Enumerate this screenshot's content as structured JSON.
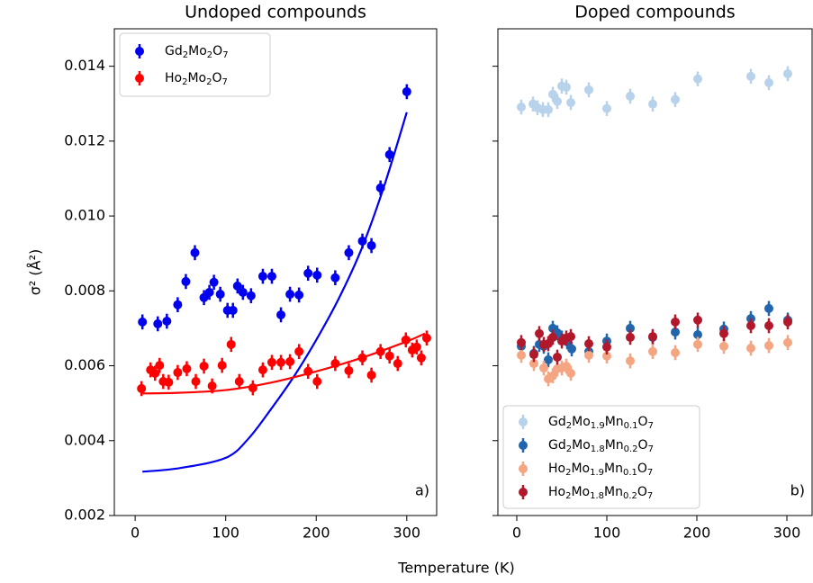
{
  "xlabel": "Temperature (K)",
  "chart_data": [
    {
      "type": "errorbar",
      "title": "Undoped compounds",
      "ylabel": "σ² (Å²)",
      "annotation": "a)",
      "xlim": [
        -23,
        333
      ],
      "ylim": [
        0.002,
        0.015
      ],
      "xticks": [
        0,
        100,
        200,
        300
      ],
      "yticks": [
        0.002,
        0.004,
        0.006,
        0.008,
        {
          "value": 0.01,
          "label": "0.010"
        },
        0.012,
        0.014
      ],
      "show_ytick_labels": true,
      "legend": "upper left",
      "series": [
        {
          "name": "Gd2Mo2O7",
          "color": "#0000ee",
          "error": 0.0002,
          "x": [
            8,
            25,
            35,
            47,
            56,
            66,
            76,
            82,
            87,
            94,
            102,
            108,
            113,
            119,
            128,
            141,
            151,
            161,
            171,
            181,
            191,
            201,
            221,
            236,
            251,
            261,
            271,
            281,
            300
          ],
          "values": [
            0.00717,
            0.00712,
            0.00719,
            0.00763,
            0.00825,
            0.00902,
            0.00782,
            0.00796,
            0.00823,
            0.00791,
            0.00748,
            0.00748,
            0.00813,
            0.00796,
            0.00787,
            0.00839,
            0.00839,
            0.00736,
            0.00791,
            0.00789,
            0.00847,
            0.00842,
            0.00835,
            0.00902,
            0.00933,
            0.00921,
            0.01075,
            0.01164,
            0.01332
          ]
        },
        {
          "name": "Ho2Mo2O7",
          "color": "#ff0000",
          "error": 0.0002,
          "x": [
            7,
            17,
            22,
            27,
            31,
            37,
            47,
            57,
            67,
            76,
            85,
            96,
            106,
            115,
            130,
            141,
            151,
            161,
            171,
            181,
            191,
            201,
            221,
            236,
            251,
            261,
            271,
            281,
            290,
            299,
            306,
            311,
            316,
            322
          ],
          "values": [
            0.00539,
            0.00589,
            0.0058,
            0.00601,
            0.00558,
            0.00556,
            0.00582,
            0.00592,
            0.00558,
            0.00599,
            0.00546,
            0.00601,
            0.00657,
            0.00558,
            0.00541,
            0.00589,
            0.00609,
            0.00609,
            0.00611,
            0.00638,
            0.00585,
            0.00558,
            0.00606,
            0.00587,
            0.00621,
            0.00575,
            0.00638,
            0.00626,
            0.00606,
            0.00669,
            0.00642,
            0.0065,
            0.00621,
            0.00674
          ]
        }
      ],
      "fits": [
        {
          "color": "#0000ee",
          "x": [
            8,
            50,
            100,
            125,
            150,
            175,
            200,
            225,
            250,
            275,
            300
          ],
          "values": [
            0.00317,
            0.00327,
            0.00354,
            0.00405,
            0.00484,
            0.0057,
            0.00669,
            0.0078,
            0.00912,
            0.0108,
            0.01277
          ]
        },
        {
          "color": "#ff0000",
          "x": [
            8,
            50,
            100,
            150,
            200,
            250,
            300,
            320
          ],
          "values": [
            0.00526,
            0.00528,
            0.00535,
            0.00555,
            0.00585,
            0.00621,
            0.00665,
            0.00686
          ]
        }
      ]
    },
    {
      "type": "errorbar",
      "title": "Doped compounds",
      "annotation": "b)",
      "xlim": [
        -21,
        328
      ],
      "ylim": [
        0.002,
        0.015
      ],
      "xticks": [
        0,
        100,
        200,
        300
      ],
      "yticks": [
        0.002,
        0.004,
        0.006,
        0.008,
        0.01,
        0.012,
        0.014
      ],
      "show_ytick_labels": false,
      "legend": "lower left",
      "series": [
        {
          "name": "Gd2Mo1.9Mn0.1O7",
          "color": "#b7d2ea",
          "error": 0.0002,
          "x": [
            5,
            18,
            23,
            29,
            35,
            40,
            45,
            50,
            55,
            60,
            80,
            100,
            126,
            151,
            176,
            201,
            260,
            280,
            301
          ],
          "values": [
            0.01291,
            0.01299,
            0.01289,
            0.01284,
            0.01284,
            0.01325,
            0.01306,
            0.01347,
            0.01344,
            0.01303,
            0.01337,
            0.01287,
            0.0132,
            0.01299,
            0.01311,
            0.01366,
            0.01373,
            0.01356,
            0.0138
          ]
        },
        {
          "name": "Gd2Mo1.8Mn0.2O7",
          "color": "#2166ac",
          "error": 0.0002,
          "x": [
            5,
            19,
            25,
            30,
            35,
            40,
            45,
            50,
            56,
            61,
            80,
            100,
            126,
            151,
            176,
            201,
            230,
            260,
            280,
            301
          ],
          "values": [
            0.00652,
            0.00633,
            0.00657,
            0.00652,
            0.00616,
            0.007,
            0.00688,
            0.00674,
            0.00664,
            0.00645,
            0.00638,
            0.00666,
            0.007,
            0.00676,
            0.0069,
            0.00683,
            0.00698,
            0.00726,
            0.00753,
            0.00722
          ]
        },
        {
          "name": "Ho2Mo1.9Mn0.1O7",
          "color": "#f4a582",
          "error": 0.0002,
          "x": [
            5,
            19,
            30,
            35,
            40,
            45,
            50,
            55,
            60,
            80,
            100,
            126,
            151,
            176,
            201,
            230,
            260,
            280,
            301
          ],
          "values": [
            0.00628,
            0.00606,
            0.00594,
            0.00565,
            0.00573,
            0.00592,
            0.00594,
            0.00599,
            0.0058,
            0.00628,
            0.00626,
            0.00613,
            0.00638,
            0.00635,
            0.00657,
            0.00652,
            0.00647,
            0.00654,
            0.00662
          ]
        },
        {
          "name": "Ho2Mo1.8Mn0.2O7",
          "color": "#b2182b",
          "error": 0.0002,
          "x": [
            5,
            19,
            25,
            30,
            35,
            40,
            45,
            50,
            55,
            60,
            80,
            100,
            126,
            151,
            176,
            201,
            230,
            260,
            280,
            301
          ],
          "values": [
            0.00662,
            0.0063,
            0.00686,
            0.00657,
            0.00659,
            0.00676,
            0.00623,
            0.00666,
            0.00674,
            0.00678,
            0.00659,
            0.0065,
            0.00676,
            0.00678,
            0.00717,
            0.00722,
            0.00686,
            0.00707,
            0.00707,
            0.00717
          ]
        }
      ]
    }
  ]
}
